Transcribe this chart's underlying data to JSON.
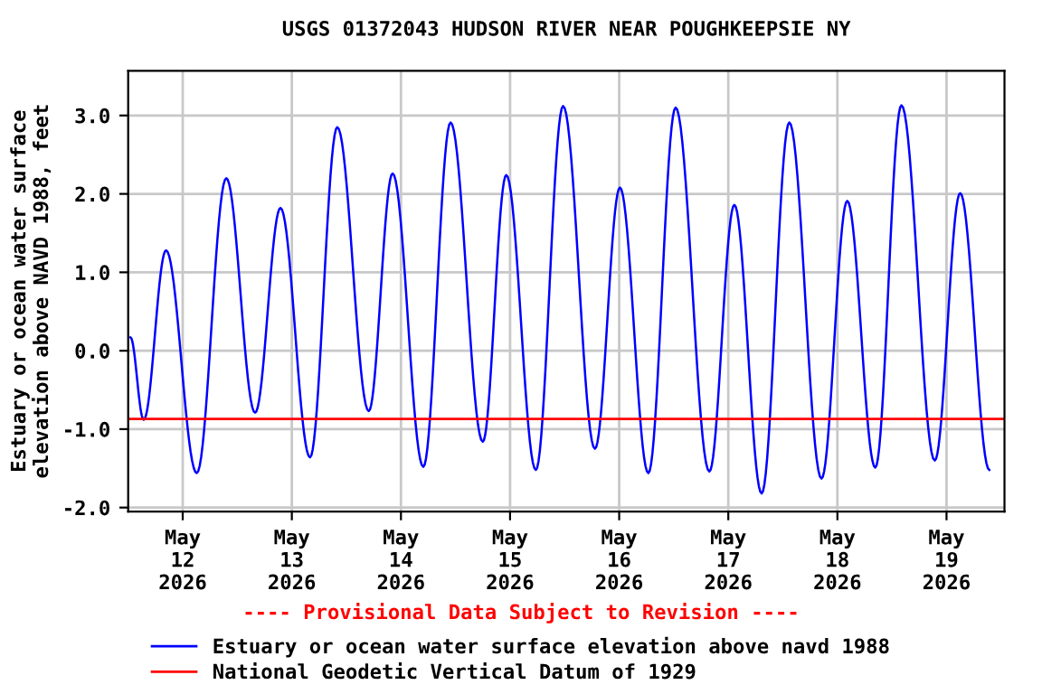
{
  "chart_data": {
    "type": "line",
    "title": "USGS 01372043 HUDSON RIVER NEAR POUGHKEEPSIE NY",
    "ylabel": "Estuary or ocean water surface\nelevation above NAVD 1988, feet",
    "x": [
      "2026-05-11T12:30",
      "2026-05-11T15:25",
      "2026-05-11T20:20",
      "2026-05-12T03:05",
      "2026-05-12T09:35",
      "2026-05-12T15:55",
      "2026-05-12T21:30",
      "2026-05-13T04:00",
      "2026-05-13T10:00",
      "2026-05-13T16:55",
      "2026-05-13T22:10",
      "2026-05-14T04:55",
      "2026-05-14T10:55",
      "2026-05-14T18:00",
      "2026-05-14T23:10",
      "2026-05-15T05:40",
      "2026-05-15T11:40",
      "2026-05-15T18:40",
      "2026-05-16T00:10",
      "2026-05-16T06:25",
      "2026-05-16T12:25",
      "2026-05-16T19:50",
      "2026-05-17T01:20",
      "2026-05-17T07:20",
      "2026-05-17T13:25",
      "2026-05-17T20:30",
      "2026-05-18T02:10",
      "2026-05-18T08:20",
      "2026-05-18T14:05",
      "2026-05-18T21:25",
      "2026-05-19T03:00",
      "2026-05-19T09:25"
    ],
    "series": [
      {
        "name": "Estuary or ocean water surface elevation above navd 1988",
        "color": "#0000ff",
        "values": [
          0.17,
          -0.88,
          1.28,
          -1.56,
          2.2,
          -0.79,
          1.82,
          -1.36,
          2.85,
          -0.77,
          2.26,
          -1.48,
          2.91,
          -1.16,
          2.24,
          -1.52,
          3.12,
          -1.25,
          2.08,
          -1.56,
          3.1,
          -1.54,
          1.86,
          -1.82,
          2.91,
          -1.63,
          1.91,
          -1.49,
          3.13,
          -1.4,
          2.01,
          -1.52
        ]
      }
    ],
    "ref_lines": [
      {
        "axis": "y",
        "value": -0.87,
        "label": "National Geodetic Vertical Datum of 1929",
        "color": "#ff0000"
      }
    ],
    "annotations": [
      "---- Provisional Data Subject to Revision ----"
    ],
    "xlim": [
      "2026-05-11T12:00",
      "2026-05-19T12:45"
    ],
    "xticks": [
      {
        "value": "2026-05-12",
        "label": "May\n12\n2026"
      },
      {
        "value": "2026-05-13",
        "label": "May\n13\n2026"
      },
      {
        "value": "2026-05-14",
        "label": "May\n14\n2026"
      },
      {
        "value": "2026-05-15",
        "label": "May\n15\n2026"
      },
      {
        "value": "2026-05-16",
        "label": "May\n16\n2026"
      },
      {
        "value": "2026-05-17",
        "label": "May\n17\n2026"
      },
      {
        "value": "2026-05-18",
        "label": "May\n18\n2026"
      },
      {
        "value": "2026-05-19",
        "label": "May\n19\n2026"
      }
    ],
    "ylim": [
      -2.05,
      3.57
    ],
    "yticks": [
      {
        "value": -2,
        "label": "-2.0"
      },
      {
        "value": -1,
        "label": "-1.0"
      },
      {
        "value": 0,
        "label": "0.0"
      },
      {
        "value": 1,
        "label": "1.0"
      },
      {
        "value": 2,
        "label": "2.0"
      },
      {
        "value": 3,
        "label": "3.0"
      }
    ],
    "grid": true,
    "legend": "bottom",
    "line_style": "solid"
  }
}
